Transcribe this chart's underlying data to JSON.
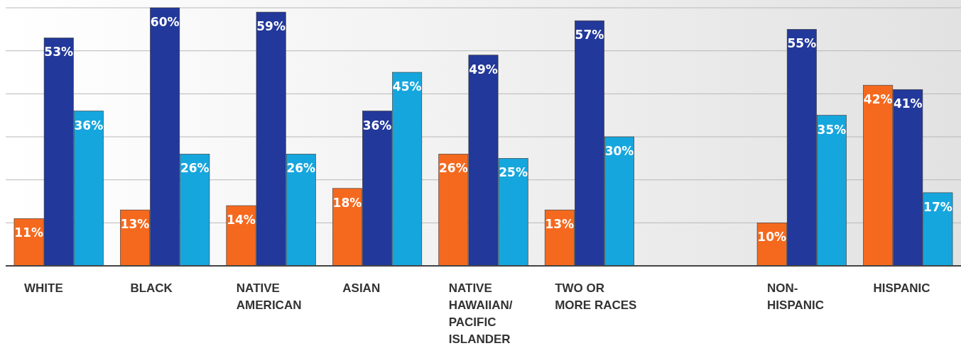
{
  "chart_data": {
    "type": "bar",
    "categories": [
      "WHITE",
      "BLACK",
      "NATIVE AMERICAN",
      "ASIAN",
      "NATIVE HAWAIIAN/ PACIFIC ISLANDER",
      "TWO OR MORE RACES",
      null,
      "NON-HISPANIC",
      "HISPANIC"
    ],
    "series": [
      {
        "color": "#f5691e",
        "values": [
          11,
          13,
          14,
          18,
          26,
          13,
          null,
          10,
          42
        ],
        "value_labels": [
          "11%",
          "13%",
          "14%",
          "18%",
          "26%",
          "13%",
          null,
          "10%",
          "42%"
        ]
      },
      {
        "color": "#22389a",
        "values": [
          53,
          60,
          59,
          36,
          49,
          57,
          null,
          55,
          41
        ],
        "value_labels": [
          "53%",
          "60%",
          "59%",
          "36%",
          "49%",
          "57%",
          null,
          "55%",
          "41%"
        ]
      },
      {
        "color": "#16a6de",
        "values": [
          36,
          26,
          26,
          45,
          25,
          30,
          null,
          35,
          17
        ],
        "value_labels": [
          "36%",
          "26%",
          "26%",
          "45%",
          "25%",
          "30%",
          null,
          "35%",
          "17%"
        ]
      }
    ],
    "ylim": [
      0,
      60
    ],
    "yticks": [
      {
        "value": 0,
        "label": null
      },
      {
        "value": 10,
        "label": null
      },
      {
        "value": 20,
        "label": null
      },
      {
        "value": 30,
        "label": null
      },
      {
        "value": 40,
        "label": null
      },
      {
        "value": 50,
        "label": null
      },
      {
        "value": 60,
        "label": null
      }
    ],
    "grid": "y",
    "tick_labels": "x"
  }
}
